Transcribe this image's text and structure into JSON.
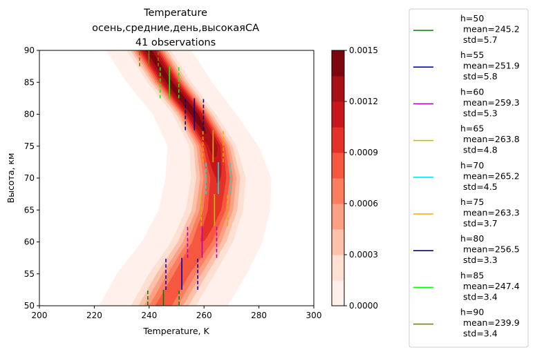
{
  "chart_data": {
    "type": "contour",
    "title_lines": [
      "Temperature",
      "осень,средние,день,высокаяСА",
      "41 observations"
    ],
    "xlabel": "Temperature, K",
    "ylabel": "Высота, км",
    "xlim": [
      200,
      300
    ],
    "ylim": [
      50,
      90
    ],
    "xticks": [
      "200",
      "220",
      "240",
      "260",
      "280",
      "300"
    ],
    "yticks": [
      "50",
      "55",
      "60",
      "65",
      "70",
      "75",
      "80",
      "85",
      "90"
    ],
    "colorbar": {
      "range": [
        0,
        0.0015
      ],
      "ticks": [
        "0.0000",
        "0.0003",
        "0.0006",
        "0.0009",
        "0.0012",
        "0.0015"
      ],
      "levels": 10,
      "colors": [
        "#fff0eb",
        "#fee0d2",
        "#fcc1ab",
        "#fca083",
        "#fb7e5e",
        "#f6573f",
        "#e53228",
        "#c7171c",
        "#a81016",
        "#7c0510"
      ]
    },
    "series": [
      {
        "h": 50,
        "label": [
          "h=50",
          " mean=245.2",
          " std=5.7"
        ],
        "mean": 245.2,
        "std": 5.7,
        "color": "#008000"
      },
      {
        "h": 55,
        "label": [
          "h=55",
          " mean=251.9",
          " std=5.8"
        ],
        "mean": 251.9,
        "std": 5.8,
        "color": "#0000cd"
      },
      {
        "h": 60,
        "label": [
          "h=60",
          " mean=259.3",
          " std=5.3"
        ],
        "mean": 259.3,
        "std": 5.3,
        "color": "#c000c0"
      },
      {
        "h": 65,
        "label": [
          "h=65",
          " mean=263.8",
          " std=4.8"
        ],
        "mean": 263.8,
        "std": 4.8,
        "color": "#bfbf00"
      },
      {
        "h": 70,
        "label": [
          "h=70",
          " mean=265.2",
          " std=4.5"
        ],
        "mean": 265.2,
        "std": 4.5,
        "color": "#00e5ee"
      },
      {
        "h": 75,
        "label": [
          "h=75",
          " mean=263.3",
          " std=3.7"
        ],
        "mean": 263.3,
        "std": 3.7,
        "color": "#ffa500"
      },
      {
        "h": 80,
        "label": [
          "h=80",
          " mean=256.5",
          " std=3.3"
        ],
        "mean": 256.5,
        "std": 3.3,
        "color": "#00007f"
      },
      {
        "h": 85,
        "label": [
          "h=85",
          " mean=247.4",
          " std=3.4"
        ],
        "mean": 247.4,
        "std": 3.4,
        "color": "#00ff00"
      },
      {
        "h": 90,
        "label": [
          "h=90",
          " mean=239.9",
          " std=3.4"
        ],
        "mean": 239.9,
        "std": 3.4,
        "color": "#808000"
      }
    ]
  }
}
